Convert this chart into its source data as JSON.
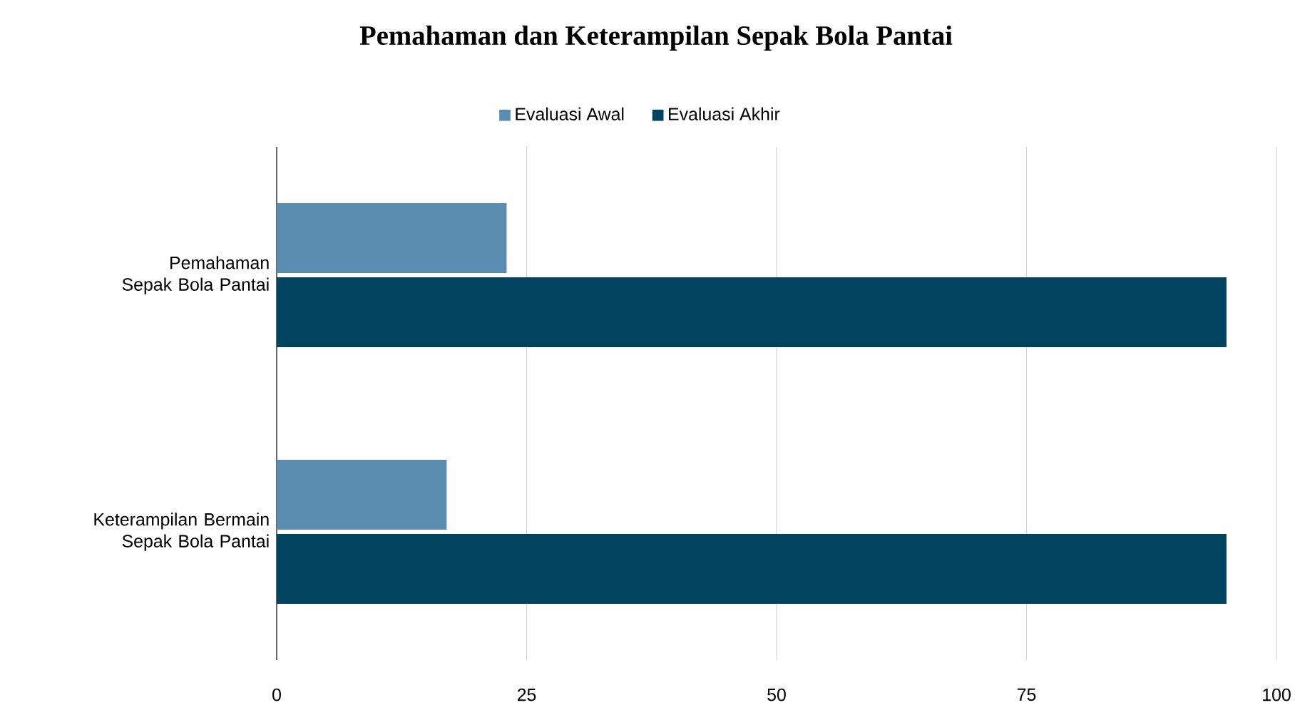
{
  "chart_data": {
    "type": "bar",
    "orientation": "horizontal",
    "title": "Pemahaman dan Keterampilan Sepak Bola Pantai",
    "categories": [
      "Pemahaman Sepak Bola Pantai",
      "Keterampilan Bermain Sepak Bola Pantai"
    ],
    "series": [
      {
        "name": "Evaluasi Awal",
        "color": "#5b8db0",
        "values": [
          23,
          17
        ]
      },
      {
        "name": "Evaluasi Akhir",
        "color": "#02445f",
        "values": [
          95,
          95
        ]
      }
    ],
    "xlim": [
      0,
      100
    ],
    "xticks": [
      0,
      25,
      50,
      75,
      100
    ],
    "grid": "x",
    "legend": "top"
  }
}
